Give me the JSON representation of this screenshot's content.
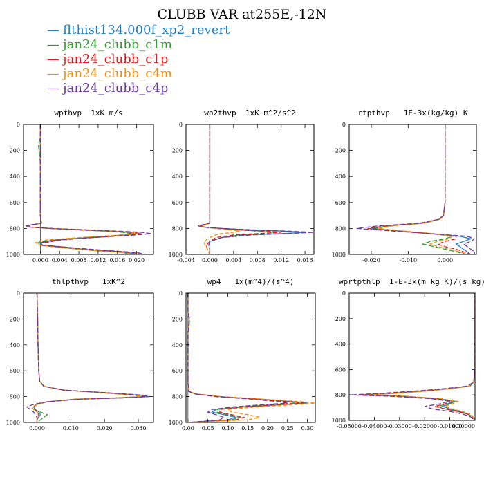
{
  "figure_title": "CLUBB VAR at255E,-12N",
  "legend": [
    {
      "marker": "—",
      "label": "flthist134.000f_xp2_revert",
      "color": "#2a7fc4"
    },
    {
      "marker": "—",
      "label": "jan24_clubb_c1m",
      "color": "#2ca02c"
    },
    {
      "marker": "—",
      "label": "jan24_clubb_c1p",
      "color": "#e31a1c"
    },
    {
      "marker": "—",
      "label": "jan24_clubb_c4m",
      "color": "#ff8c00"
    },
    {
      "marker": "—",
      "label": "jan24_clubb_c4p",
      "color": "#6a3d9a"
    }
  ],
  "chart_data": [
    {
      "type": "line",
      "title": "wpthvp  1xK m/s",
      "xlim": [
        -0.0035,
        0.0235
      ],
      "ylim": [
        1000,
        0
      ],
      "xticks": [
        0.0,
        0.004,
        0.008,
        0.012,
        0.016,
        0.02
      ],
      "xtick_labels": [
        "0.000",
        "0.004",
        "0.008",
        "0.012",
        "0.016",
        "0.020"
      ],
      "yticks": [
        0,
        200,
        400,
        600,
        800,
        1000
      ],
      "y": [
        0,
        100,
        150,
        200,
        300,
        500,
        700,
        760,
        780,
        790,
        800,
        810,
        820,
        830,
        840,
        850,
        870,
        890,
        910,
        930,
        950,
        970,
        985,
        1000
      ],
      "series": [
        {
          "values": [
            0.0,
            0.0,
            0.0,
            0.0,
            0.0,
            0.0,
            0.0,
            0.0002,
            -0.003,
            -0.002,
            0.002,
            0.008,
            0.014,
            0.018,
            0.02,
            0.018,
            0.01,
            0.003,
            0.0,
            0.0003,
            0.006,
            0.012,
            0.018,
            0.02
          ]
        },
        {
          "values": [
            0.0,
            0.0,
            -0.0004,
            -0.0003,
            0.0,
            0.0,
            0.0,
            0.0002,
            -0.0028,
            -0.002,
            0.002,
            0.007,
            0.013,
            0.017,
            0.019,
            0.017,
            0.009,
            0.002,
            -0.0005,
            0.0,
            0.005,
            0.011,
            0.017,
            0.019
          ]
        },
        {
          "values": [
            0.0,
            0.0,
            0.0,
            0.0,
            0.0,
            0.0,
            0.0,
            0.0002,
            -0.003,
            -0.0022,
            0.002,
            0.008,
            0.014,
            0.019,
            0.021,
            0.019,
            0.011,
            0.004,
            0.001,
            0.001,
            0.007,
            0.013,
            0.019,
            0.021
          ]
        },
        {
          "values": [
            0.0,
            0.0,
            0.0,
            0.0,
            0.0,
            0.0,
            0.0,
            0.0002,
            -0.0025,
            -0.0015,
            0.003,
            0.009,
            0.015,
            0.019,
            0.02,
            0.017,
            0.008,
            0.001,
            -0.001,
            0.0,
            0.005,
            0.011,
            0.017,
            0.019
          ]
        },
        {
          "values": [
            0.0,
            0.0,
            0.0,
            0.0,
            0.0,
            0.0,
            0.0,
            0.0002,
            -0.003,
            -0.002,
            0.002,
            0.009,
            0.016,
            0.021,
            0.023,
            0.02,
            0.011,
            0.003,
            0.0,
            0.0005,
            0.007,
            0.014,
            0.02,
            0.022
          ]
        }
      ]
    },
    {
      "type": "line",
      "title": "wp2thvp  1xK m^2/s^2",
      "xlim": [
        -0.004,
        0.0175
      ],
      "ylim": [
        1000,
        0
      ],
      "xticks": [
        -0.004,
        0.0,
        0.004,
        0.008,
        0.012,
        0.016
      ],
      "xtick_labels": [
        "-0.004",
        "0.000",
        "0.004",
        "0.008",
        "0.012",
        "0.016"
      ],
      "yticks": [
        0,
        200,
        400,
        600,
        800,
        1000
      ],
      "y": [
        0,
        300,
        600,
        760,
        780,
        790,
        800,
        810,
        820,
        830,
        840,
        850,
        870,
        900,
        930,
        960,
        1000
      ],
      "series": [
        {
          "values": [
            0.0,
            0.0,
            0.0,
            0.0,
            -0.0015,
            -0.001,
            0.002,
            0.006,
            0.012,
            0.016,
            0.012,
            0.006,
            0.002,
            0.0,
            0.0,
            0.0,
            0.0
          ]
        },
        {
          "values": [
            0.0,
            0.0,
            0.0,
            0.0,
            -0.0015,
            -0.001,
            0.001,
            0.004,
            0.008,
            0.011,
            0.009,
            0.005,
            0.002,
            0.0,
            0.0,
            0.0,
            0.0
          ]
        },
        {
          "values": [
            0.0,
            0.0,
            0.0,
            0.0,
            -0.0015,
            -0.001,
            0.0015,
            0.005,
            0.009,
            0.012,
            0.008,
            0.004,
            0.001,
            0.0,
            -0.0006,
            -0.0004,
            0.0
          ]
        },
        {
          "values": [
            0.0,
            0.0,
            0.0,
            0.0,
            -0.0012,
            -0.0008,
            0.001,
            0.003,
            0.005,
            0.004,
            0.002,
            0.001,
            0.0,
            -0.001,
            -0.0008,
            -0.0004,
            0.0
          ]
        },
        {
          "values": [
            0.0,
            0.0,
            0.0,
            0.0,
            -0.002,
            -0.0012,
            0.002,
            0.007,
            0.013,
            0.0175,
            0.013,
            0.007,
            0.002,
            0.0,
            -0.0002,
            0.0,
            0.0
          ]
        }
      ]
    },
    {
      "type": "line",
      "title": "rtpthvp   1E-3x(kg/kg) K",
      "xlim": [
        -0.026,
        0.0085
      ],
      "ylim": [
        1000,
        0
      ],
      "xticks": [
        -0.02,
        -0.01,
        0.0
      ],
      "xtick_labels": [
        "-0.020",
        "-0.010",
        "0.000"
      ],
      "yticks": [
        0,
        200,
        400,
        600,
        800,
        1000
      ],
      "y": [
        0,
        300,
        600,
        700,
        730,
        760,
        780,
        800,
        820,
        840,
        860,
        880,
        900,
        920,
        940,
        960,
        980,
        1000
      ],
      "series": [
        {
          "values": [
            0.0,
            0.0,
            0.0,
            -0.0004,
            -0.0015,
            -0.006,
            -0.015,
            -0.02,
            -0.012,
            -0.004,
            0.004,
            0.007,
            0.005,
            0.003,
            0.004,
            0.005,
            0.006,
            0.007
          ]
        },
        {
          "values": [
            0.0,
            0.0,
            0.0,
            -0.0004,
            -0.0015,
            -0.006,
            -0.015,
            -0.019,
            -0.012,
            -0.004,
            0.002,
            0.0,
            -0.004,
            -0.006,
            -0.003,
            0.0,
            0.003,
            0.006
          ]
        },
        {
          "values": [
            0.0,
            0.0,
            0.0,
            -0.0004,
            -0.0016,
            -0.0065,
            -0.016,
            -0.021,
            -0.013,
            -0.004,
            0.003,
            0.003,
            0.0,
            -0.002,
            0.0,
            0.003,
            0.005,
            0.007
          ]
        },
        {
          "values": [
            0.0,
            0.0,
            0.0,
            -0.0004,
            -0.0014,
            -0.0055,
            -0.014,
            -0.018,
            -0.011,
            -0.003,
            0.002,
            0.001,
            -0.002,
            -0.004,
            -0.002,
            0.001,
            0.004,
            0.006
          ]
        },
        {
          "values": [
            0.0,
            0.0,
            0.0,
            -0.0005,
            -0.0018,
            -0.007,
            -0.018,
            -0.024,
            -0.014,
            -0.004,
            0.006,
            0.008,
            0.007,
            0.005,
            0.006,
            0.007,
            0.008,
            0.008
          ]
        }
      ]
    },
    {
      "type": "line",
      "title": "thlpthvp   1xK^2",
      "xlim": [
        -0.004,
        0.0345
      ],
      "ylim": [
        1000,
        0
      ],
      "xticks": [
        0.0,
        0.01,
        0.02,
        0.03
      ],
      "xtick_labels": [
        "0.000",
        "0.010",
        "0.020",
        "0.030"
      ],
      "yticks": [
        0,
        200,
        400,
        600,
        800,
        1000
      ],
      "y": [
        0,
        200,
        400,
        600,
        680,
        720,
        750,
        770,
        790,
        800,
        810,
        820,
        840,
        860,
        880,
        900,
        920,
        940,
        960,
        980,
        1000
      ],
      "series": [
        {
          "values": [
            0.0,
            0.0002,
            0.0003,
            0.0005,
            0.0008,
            0.002,
            0.008,
            0.02,
            0.031,
            0.033,
            0.025,
            0.012,
            0.003,
            0.0,
            -0.001,
            -0.0005,
            0.0005,
            0.001,
            0.0005,
            0.0,
            0.0
          ]
        },
        {
          "values": [
            0.0,
            0.0002,
            0.0003,
            0.0005,
            0.0008,
            0.002,
            0.008,
            0.019,
            0.029,
            0.031,
            0.023,
            0.011,
            0.003,
            0.0,
            -0.001,
            -0.0008,
            0.001,
            0.003,
            0.002,
            0.001,
            0.0
          ]
        },
        {
          "values": [
            0.0,
            0.0002,
            0.0003,
            0.0005,
            0.0008,
            0.002,
            0.008,
            0.02,
            0.03,
            0.032,
            0.024,
            0.012,
            0.003,
            0.0,
            -0.001,
            -0.0005,
            0.0,
            0.0005,
            0.0003,
            0.0,
            0.0
          ]
        },
        {
          "values": [
            0.0,
            0.0002,
            0.0003,
            0.0005,
            0.0008,
            0.002,
            0.008,
            0.019,
            0.029,
            0.031,
            0.023,
            0.011,
            0.003,
            0.0,
            -0.0015,
            -0.001,
            0.0,
            0.0005,
            0.0003,
            0.0,
            0.0
          ]
        },
        {
          "values": [
            0.0,
            0.0002,
            0.0003,
            0.0005,
            0.0008,
            0.002,
            0.008,
            0.021,
            0.032,
            0.0335,
            0.026,
            0.013,
            0.003,
            -0.001,
            -0.003,
            -0.002,
            -0.001,
            -0.0005,
            0.0,
            0.0,
            0.0
          ]
        }
      ]
    },
    {
      "type": "line",
      "title": "wp4   1x(m^4)/(s^4)",
      "xlim": [
        -0.005,
        0.32
      ],
      "ylim": [
        1000,
        0
      ],
      "xticks": [
        0.0,
        0.05,
        0.1,
        0.15,
        0.2,
        0.25,
        0.3
      ],
      "xtick_labels": [
        "0.00",
        "0.05",
        "0.10",
        "0.15",
        "0.20",
        "0.25",
        "0.30"
      ],
      "yticks": [
        0,
        200,
        400,
        600,
        800,
        1000
      ],
      "y": [
        0,
        150,
        200,
        250,
        300,
        500,
        700,
        760,
        780,
        800,
        820,
        840,
        850,
        860,
        880,
        900,
        920,
        940,
        960,
        980,
        1000
      ],
      "series": [
        {
          "values": [
            0.0,
            0.0,
            0.003,
            0.002,
            0.0,
            0.0,
            0.0,
            0.002,
            0.02,
            0.08,
            0.18,
            0.27,
            0.3,
            0.25,
            0.14,
            0.07,
            0.06,
            0.09,
            0.12,
            0.1,
            0.0
          ]
        },
        {
          "values": [
            0.0,
            0.0,
            0.004,
            0.003,
            0.0,
            0.0,
            0.0,
            0.002,
            0.02,
            0.075,
            0.17,
            0.25,
            0.28,
            0.23,
            0.13,
            0.07,
            0.07,
            0.1,
            0.13,
            0.11,
            0.0
          ]
        },
        {
          "values": [
            0.0,
            0.0,
            0.003,
            0.002,
            0.0,
            0.0,
            0.0,
            0.002,
            0.02,
            0.08,
            0.18,
            0.26,
            0.29,
            0.24,
            0.14,
            0.08,
            0.08,
            0.11,
            0.14,
            0.12,
            0.0
          ]
        },
        {
          "values": [
            0.0,
            0.0,
            0.003,
            0.002,
            0.0,
            0.0,
            0.0,
            0.002,
            0.02,
            0.085,
            0.19,
            0.29,
            0.32,
            0.28,
            0.17,
            0.1,
            0.11,
            0.15,
            0.18,
            0.15,
            0.0
          ]
        },
        {
          "values": [
            0.0,
            0.0,
            0.003,
            0.002,
            0.0,
            0.0,
            0.0,
            0.002,
            0.018,
            0.07,
            0.16,
            0.23,
            0.25,
            0.2,
            0.11,
            0.06,
            0.05,
            0.07,
            0.09,
            0.08,
            0.0
          ]
        }
      ]
    },
    {
      "type": "line",
      "title": "wprtpthlp  1-E-3x(m kg K)/(s kg)",
      "xlim": [
        -0.05,
        0.0
      ],
      "ylim": [
        1000,
        0
      ],
      "xticks": [
        -0.05,
        -0.04,
        -0.03,
        -0.02,
        -0.01,
        0.0
      ],
      "xtick_labels": [
        "-0.05000",
        "-0.04000",
        "-0.03000",
        "-0.02000",
        "-0.01000",
        "0.00000"
      ],
      "yticks": [
        0,
        200,
        400,
        600,
        800,
        1000
      ],
      "y": [
        0,
        300,
        600,
        700,
        730,
        750,
        770,
        790,
        800,
        810,
        830,
        850,
        870,
        890,
        910,
        930,
        950,
        970,
        1000
      ],
      "series": [
        {
          "values": [
            0.0,
            0.0,
            0.0,
            -0.0005,
            -0.002,
            -0.01,
            -0.02,
            -0.035,
            -0.045,
            -0.03,
            -0.015,
            -0.008,
            -0.01,
            -0.013,
            -0.01,
            -0.006,
            -0.003,
            -0.001,
            0.0
          ]
        },
        {
          "values": [
            0.0,
            0.0,
            0.0,
            -0.0005,
            -0.002,
            -0.01,
            -0.02,
            -0.035,
            -0.043,
            -0.028,
            -0.014,
            -0.008,
            -0.011,
            -0.015,
            -0.012,
            -0.007,
            -0.003,
            -0.001,
            0.0
          ]
        },
        {
          "values": [
            0.0,
            0.0,
            0.0,
            -0.0005,
            -0.002,
            -0.01,
            -0.021,
            -0.036,
            -0.046,
            -0.031,
            -0.015,
            -0.009,
            -0.012,
            -0.016,
            -0.012,
            -0.007,
            -0.003,
            -0.001,
            0.0
          ]
        },
        {
          "values": [
            0.0,
            0.0,
            0.0,
            -0.0005,
            -0.002,
            -0.009,
            -0.019,
            -0.033,
            -0.042,
            -0.027,
            -0.013,
            -0.007,
            -0.009,
            -0.012,
            -0.009,
            -0.005,
            -0.002,
            -0.0008,
            0.0
          ]
        },
        {
          "values": [
            0.0,
            0.0,
            0.0,
            -0.0006,
            -0.003,
            -0.012,
            -0.024,
            -0.04,
            -0.05,
            -0.034,
            -0.017,
            -0.01,
            -0.014,
            -0.02,
            -0.017,
            -0.01,
            -0.005,
            -0.002,
            0.0
          ]
        }
      ]
    }
  ]
}
